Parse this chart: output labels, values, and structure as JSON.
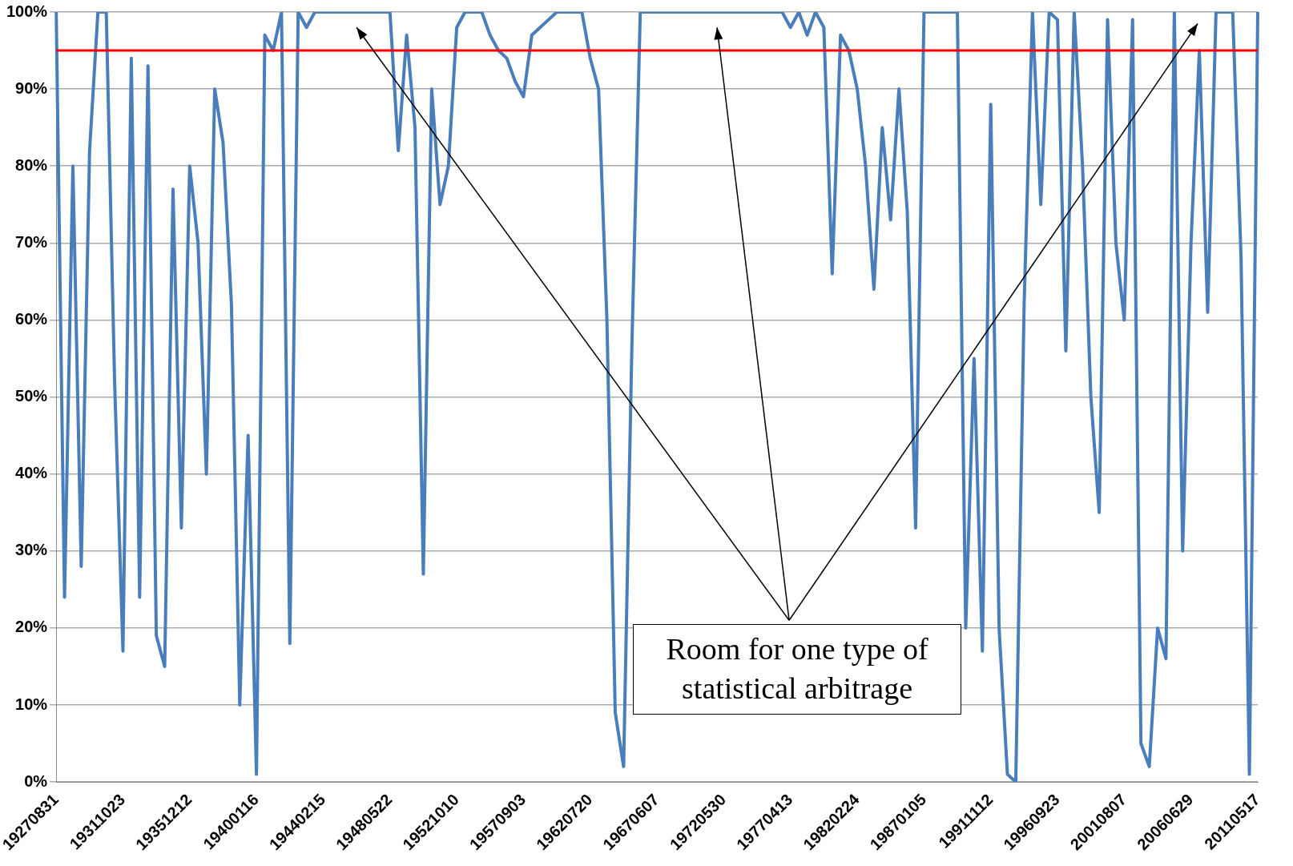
{
  "chart_data": {
    "type": "line",
    "categories": [
      "19270831",
      null,
      null,
      null,
      null,
      null,
      null,
      null,
      "19311023",
      null,
      null,
      null,
      null,
      null,
      null,
      null,
      "19351212",
      null,
      null,
      null,
      null,
      null,
      null,
      null,
      "19400116",
      null,
      null,
      null,
      null,
      null,
      null,
      null,
      "19440215",
      null,
      null,
      null,
      null,
      null,
      null,
      null,
      "19480522",
      null,
      null,
      null,
      null,
      null,
      null,
      null,
      "19521010",
      null,
      null,
      null,
      null,
      null,
      null,
      null,
      "19570903",
      null,
      null,
      null,
      null,
      null,
      null,
      null,
      "19620720",
      null,
      null,
      null,
      null,
      null,
      null,
      null,
      "19670607",
      null,
      null,
      null,
      null,
      null,
      null,
      null,
      "19720530",
      null,
      null,
      null,
      null,
      null,
      null,
      null,
      "19770413",
      null,
      null,
      null,
      null,
      null,
      null,
      null,
      "19820224",
      null,
      null,
      null,
      null,
      null,
      null,
      null,
      "19870105",
      null,
      null,
      null,
      null,
      null,
      null,
      null,
      "19911112",
      null,
      null,
      null,
      null,
      null,
      null,
      null,
      "19960923",
      null,
      null,
      null,
      null,
      null,
      null,
      null,
      "20010807",
      null,
      null,
      null,
      null,
      null,
      null,
      null,
      "20060629",
      null,
      null,
      null,
      null,
      null,
      null,
      null,
      "20110517"
    ],
    "series": [
      {
        "color": "#4a7ebb",
        "values": [
          100,
          24,
          80,
          28,
          82,
          100,
          100,
          52,
          17,
          94,
          24,
          93,
          19,
          15,
          77,
          33,
          80,
          70,
          40,
          90,
          83,
          62,
          10,
          45,
          1,
          97,
          95,
          100,
          18,
          100,
          98,
          100,
          100,
          100,
          100,
          100,
          100,
          100,
          100,
          100,
          100,
          82,
          97,
          85,
          27,
          90,
          75,
          80,
          98,
          100,
          100,
          100,
          97,
          95,
          94,
          91,
          89,
          97,
          98,
          99,
          100,
          100,
          100,
          100,
          94,
          90,
          60,
          9,
          2,
          57,
          100,
          100,
          100,
          100,
          100,
          100,
          100,
          100,
          100,
          100,
          100,
          100,
          100,
          100,
          100,
          100,
          100,
          100,
          98,
          100,
          97,
          100,
          98,
          66,
          97,
          95,
          90,
          80,
          64,
          85,
          73,
          90,
          74,
          33,
          100,
          100,
          100,
          100,
          100,
          20,
          55,
          17,
          88,
          20,
          1,
          0,
          62,
          100,
          75,
          100,
          99,
          56,
          100,
          80,
          50,
          35,
          99,
          70,
          60,
          99,
          5,
          2,
          20,
          16,
          100,
          30,
          70,
          95,
          61,
          100,
          100,
          100,
          68,
          1,
          100
        ]
      }
    ],
    "ylim": [
      0,
      100
    ],
    "yticks": [
      {
        "value": 0,
        "label": "0%"
      },
      {
        "value": 10,
        "label": "10%"
      },
      {
        "value": 20,
        "label": "20%"
      },
      {
        "value": 30,
        "label": "30%"
      },
      {
        "value": 40,
        "label": "40%"
      },
      {
        "value": 50,
        "label": "50%"
      },
      {
        "value": 60,
        "label": "60%"
      },
      {
        "value": 70,
        "label": "70%"
      },
      {
        "value": 80,
        "label": "80%"
      },
      {
        "value": 90,
        "label": "90%"
      },
      {
        "value": 100,
        "label": "100%"
      }
    ],
    "grid": "y",
    "legend": false,
    "marker": "none",
    "line_style": "solid",
    "ref_lines": [
      {
        "axis": "y",
        "value": 95,
        "color": "#ff0000"
      }
    ],
    "annotations": [
      "Room for one type of statistical arbitrage"
    ]
  }
}
